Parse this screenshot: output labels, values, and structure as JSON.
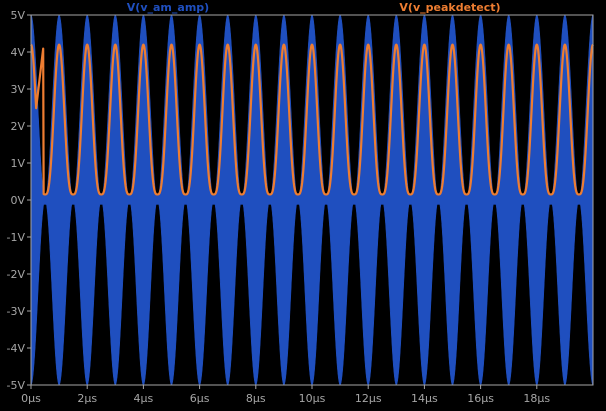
{
  "chart_data": {
    "type": "line",
    "title": "",
    "xlabel": "",
    "ylabel": "",
    "xlim": [
      0,
      20
    ],
    "ylim": [
      -5,
      5
    ],
    "x_unit": "µs",
    "y_unit": "V",
    "grid": false,
    "x_ticks": [
      "0µs",
      "2µs",
      "4µs",
      "6µs",
      "8µs",
      "10µs",
      "12µs",
      "14µs",
      "16µs",
      "18µs"
    ],
    "y_ticks": [
      "5V",
      "4V",
      "3V",
      "2V",
      "1V",
      "0V",
      "-1V",
      "-2V",
      "-3V",
      "-4V",
      "-5V"
    ],
    "legend_placement": "top",
    "series": [
      {
        "name": "V(v_am_amp)",
        "color": "#1f4fbf",
        "style": "amplitude-modulated carrier (dense fill)",
        "envelope_frequency_MHz": 1,
        "envelope_peak_V": 5,
        "envelope_min_V": 0
      },
      {
        "name": "V(v_peakdetect)",
        "color": "#ee7d31",
        "style": "line",
        "frequency_MHz": 1,
        "peak_V": 4.2,
        "min_V": 0.15
      }
    ]
  }
}
